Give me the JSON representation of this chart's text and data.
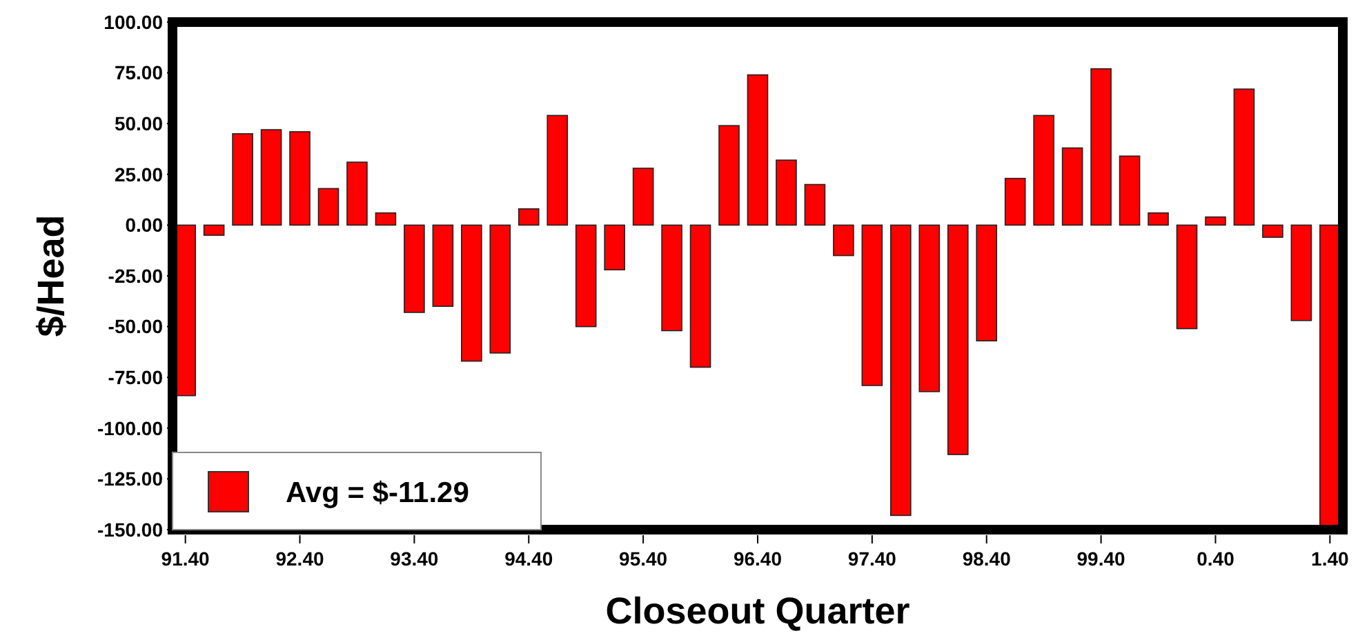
{
  "chart_data": {
    "type": "bar",
    "xlabel": "Closeout Quarter",
    "ylabel": "$/Head",
    "categories": [
      "91.40",
      null,
      null,
      null,
      "92.40",
      null,
      null,
      null,
      "93.40",
      null,
      null,
      null,
      "94.40",
      null,
      null,
      null,
      "95.40",
      null,
      null,
      null,
      "96.40",
      null,
      null,
      null,
      "97.40",
      null,
      null,
      null,
      "98.40",
      null,
      null,
      null,
      "99.40",
      null,
      null,
      null,
      "0.40",
      null,
      null,
      null,
      "1.40"
    ],
    "series": [
      {
        "name": "Avg = $-11.29",
        "color": "#ff0000",
        "values": [
          -84,
          -5,
          45,
          47,
          46,
          18,
          31,
          6,
          -43,
          -40,
          -67,
          -63,
          8,
          54,
          -50,
          -22,
          28,
          -52,
          -70,
          49,
          74,
          32,
          20,
          -15,
          -79,
          -143,
          -82,
          -113,
          -57,
          23,
          54,
          38,
          77,
          34,
          6,
          -51,
          4,
          67,
          -6,
          -47,
          -150
        ]
      }
    ],
    "ylim": [
      -150,
      100
    ],
    "yticks": [
      {
        "value": -150,
        "label": "-150.00"
      },
      {
        "value": -125,
        "label": "-125.00"
      },
      {
        "value": -100,
        "label": "-100.00"
      },
      {
        "value": -75,
        "label": "-75.00"
      },
      {
        "value": -50,
        "label": "-50.00"
      },
      {
        "value": -25,
        "label": "-25.00"
      },
      {
        "value": 0,
        "label": "0.00"
      },
      {
        "value": 25,
        "label": "25.00"
      },
      {
        "value": 50,
        "label": "50.00"
      },
      {
        "value": 75,
        "label": "75.00"
      },
      {
        "value": 100,
        "label": "100.00"
      }
    ],
    "legend": "bottom left"
  }
}
